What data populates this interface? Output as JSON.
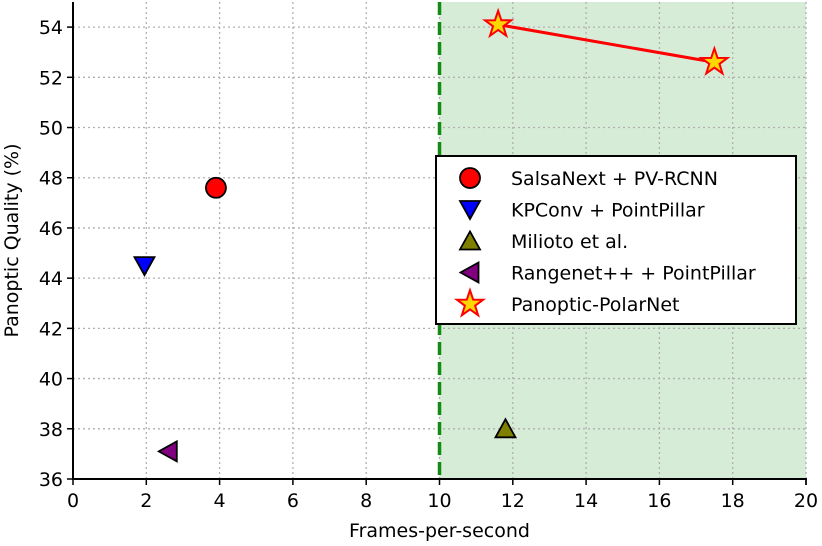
{
  "chart_data": {
    "type": "scatter",
    "title": "",
    "xlabel": "Frames-per-second",
    "ylabel": "Panoptic Quality (%)",
    "xlim": [
      0,
      20
    ],
    "ylim": [
      36,
      55
    ],
    "xticks": [
      "0",
      "2",
      "4",
      "6",
      "8",
      "10",
      "12",
      "14",
      "16",
      "18",
      "20"
    ],
    "yticks": [
      "36",
      "38",
      "40",
      "42",
      "44",
      "46",
      "48",
      "50",
      "52",
      "54"
    ],
    "grid": true,
    "realtime_threshold": {
      "x": 10,
      "style": "dashed",
      "color": "#138a13",
      "shaded_region": [
        10,
        20
      ],
      "shade_color": "#d7ecd7"
    },
    "legend_position": "center right",
    "series": [
      {
        "name": "SalsaNext + PV-RCNN",
        "marker": "circle",
        "color": "#ff0000",
        "points": [
          {
            "x": 3.9,
            "y": 47.6
          }
        ]
      },
      {
        "name": "KPConv + PointPillar",
        "marker": "triangle-down",
        "color": "#0000ff",
        "points": [
          {
            "x": 1.95,
            "y": 44.5
          }
        ]
      },
      {
        "name": "Milioto et al.",
        "marker": "triangle-up",
        "color": "#808000",
        "points": [
          {
            "x": 11.8,
            "y": 38.0
          }
        ]
      },
      {
        "name": "Rangenet++ + PointPillar",
        "marker": "triangle-left",
        "color": "#800080",
        "points": [
          {
            "x": 2.6,
            "y": 37.1
          }
        ]
      },
      {
        "name": "Panoptic-PolarNet",
        "marker": "star",
        "color": "#ffd700",
        "edge_color": "#ff0000",
        "line": true,
        "points": [
          {
            "x": 11.6,
            "y": 54.1
          },
          {
            "x": 17.5,
            "y": 52.6
          }
        ]
      }
    ]
  }
}
